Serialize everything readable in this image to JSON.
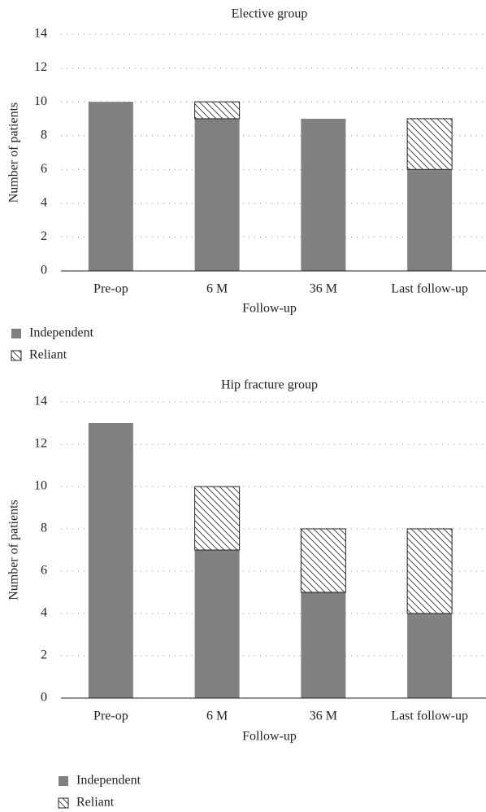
{
  "chart_data": [
    {
      "type": "bar",
      "stacked": true,
      "title": "Elective group",
      "xlabel": "Follow-up",
      "ylabel": "Number of patients",
      "categories": [
        "Pre-op",
        "6 M",
        "36 M",
        "Last follow-up"
      ],
      "series": [
        {
          "name": "Independent",
          "color": "#808083",
          "pattern": "solid",
          "values": [
            10,
            9,
            9,
            6
          ]
        },
        {
          "name": "Reliant",
          "color": "#333333",
          "pattern": "hatch",
          "values": [
            0,
            1,
            0,
            3
          ]
        }
      ],
      "ylim": [
        0,
        14
      ],
      "yticks": [
        0,
        2,
        4,
        6,
        8,
        10,
        12,
        14
      ],
      "grid": true
    },
    {
      "type": "bar",
      "stacked": true,
      "title": "Hip fracture group",
      "xlabel": "Follow-up",
      "ylabel": "Number of patients",
      "categories": [
        "Pre-op",
        "6 M",
        "36 M",
        "Last follow-up"
      ],
      "series": [
        {
          "name": "Independent",
          "color": "#808083",
          "pattern": "solid",
          "values": [
            13,
            7,
            5,
            4
          ]
        },
        {
          "name": "Reliant",
          "color": "#333333",
          "pattern": "hatch",
          "values": [
            0,
            3,
            3,
            4
          ]
        }
      ],
      "ylim": [
        0,
        14
      ],
      "yticks": [
        0,
        2,
        4,
        6,
        8,
        10,
        12,
        14
      ],
      "grid": true
    }
  ]
}
